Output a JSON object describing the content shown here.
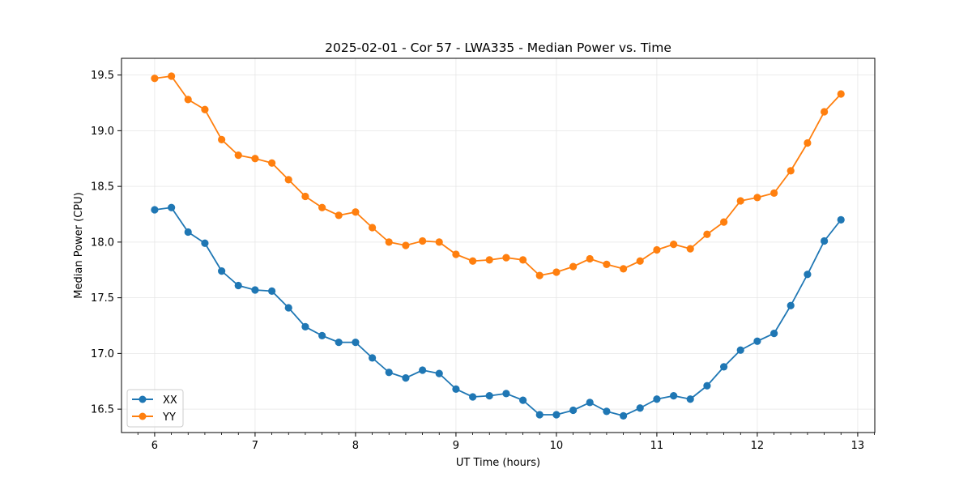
{
  "chart_data": {
    "type": "line",
    "title": "2025-02-01 - Cor 57 - LWA335 - Median Power vs. Time",
    "xlabel": "UT Time (hours)",
    "ylabel": "Median Power (CPU)",
    "xlim": [
      5.67,
      13.17
    ],
    "ylim": [
      16.29,
      19.65
    ],
    "xticks": [
      6,
      7,
      8,
      9,
      10,
      11,
      12,
      13
    ],
    "yticks": [
      16.5,
      17.0,
      17.5,
      18.0,
      18.5,
      19.0,
      19.5
    ],
    "xtick_labels": [
      "6",
      "7",
      "8",
      "9",
      "10",
      "11",
      "12",
      "13"
    ],
    "ytick_labels": [
      "16.5",
      "17.0",
      "17.5",
      "18.0",
      "18.5",
      "19.0",
      "19.5"
    ],
    "x_minor_step": 0.166667,
    "grid": true,
    "legend_position": "lower-left",
    "x": [
      6.0,
      6.167,
      6.333,
      6.5,
      6.667,
      6.833,
      7.0,
      7.167,
      7.333,
      7.5,
      7.667,
      7.833,
      8.0,
      8.167,
      8.333,
      8.5,
      8.667,
      8.833,
      9.0,
      9.167,
      9.333,
      9.5,
      9.667,
      9.833,
      10.0,
      10.167,
      10.333,
      10.5,
      10.667,
      10.833,
      11.0,
      11.167,
      11.333,
      11.5,
      11.667,
      11.833,
      12.0,
      12.167,
      12.333,
      12.5,
      12.667,
      12.833
    ],
    "series": [
      {
        "name": "XX",
        "color": "#1f77b4",
        "values": [
          18.29,
          18.31,
          18.09,
          17.99,
          17.74,
          17.61,
          17.57,
          17.56,
          17.41,
          17.24,
          17.16,
          17.1,
          17.1,
          16.96,
          16.83,
          16.78,
          16.85,
          16.82,
          16.68,
          16.61,
          16.62,
          16.64,
          16.58,
          16.45,
          16.45,
          16.49,
          16.56,
          16.48,
          16.44,
          16.51,
          16.59,
          16.62,
          16.59,
          16.71,
          16.88,
          17.03,
          17.11,
          17.18,
          17.43,
          17.71,
          18.01,
          18.2
        ]
      },
      {
        "name": "YY",
        "color": "#ff7f0e",
        "values": [
          19.47,
          19.49,
          19.28,
          19.19,
          18.92,
          18.78,
          18.75,
          18.71,
          18.56,
          18.41,
          18.31,
          18.24,
          18.27,
          18.13,
          18.0,
          17.97,
          18.01,
          18.0,
          17.89,
          17.83,
          17.84,
          17.86,
          17.84,
          17.7,
          17.73,
          17.78,
          17.85,
          17.8,
          17.76,
          17.83,
          17.93,
          17.98,
          17.94,
          18.07,
          18.18,
          18.37,
          18.4,
          18.44,
          18.64,
          18.89,
          19.17,
          19.33
        ]
      }
    ]
  },
  "colors": {
    "grid": "#e6e6e6",
    "axes": "#000000",
    "background": "#ffffff"
  }
}
